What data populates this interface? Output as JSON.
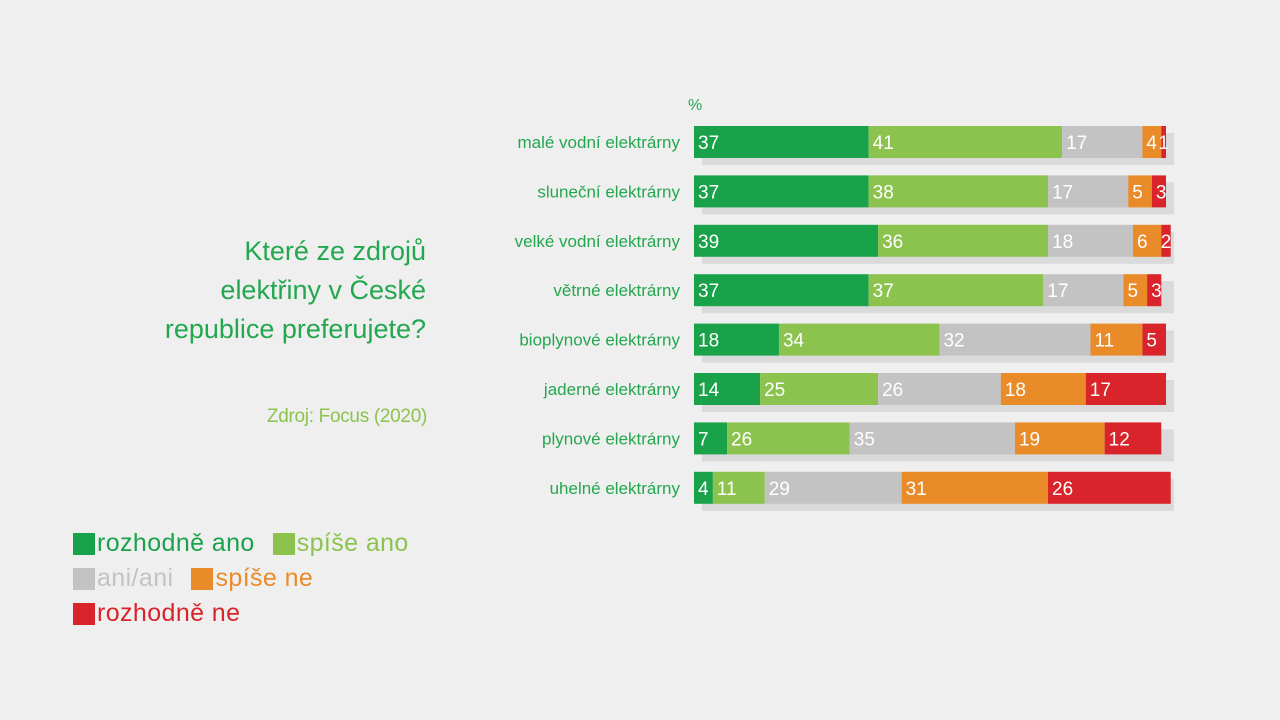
{
  "question": "Které ze zdrojů elektřiny v České republice preferujete?",
  "source": "Zdroj: Focus (2020)",
  "legend": [
    {
      "label": "rozhodně ano",
      "color": "#1aa24a"
    },
    {
      "label": "spíše ano",
      "color": "#8cc34e"
    },
    {
      "label": "ani/ani",
      "color": "#c3c3c3"
    },
    {
      "label": "spíše ne",
      "color": "#ea8b2a"
    },
    {
      "label": "rozhodně ne",
      "color": "#d8242a"
    }
  ],
  "colors": {
    "title": "#23a74f",
    "category_label": "#23a74f",
    "source": "#8cc34e",
    "unit": "#23a74f",
    "bar_text": "#ffffff"
  },
  "chart_data": {
    "type": "bar",
    "orientation": "horizontal",
    "stacked": true,
    "unit_label": "%",
    "xlim": [
      0,
      100
    ],
    "categories": [
      "malé vodní elektrárny",
      "sluneční elektrárny",
      "velké vodní elektrárny",
      "větrné elektrárny",
      "bioplynové elektrárny",
      "jaderné elektrárny",
      "plynové elektrárny",
      "uhelné elektrárny"
    ],
    "series": [
      {
        "name": "rozhodně ano",
        "color": "#1aa24a",
        "values": [
          37,
          37,
          39,
          37,
          18,
          14,
          7,
          4
        ]
      },
      {
        "name": "spíše ano",
        "color": "#8cc34e",
        "values": [
          41,
          38,
          36,
          37,
          34,
          25,
          26,
          11
        ]
      },
      {
        "name": "ani/ani",
        "color": "#c3c3c3",
        "values": [
          17,
          17,
          18,
          17,
          32,
          26,
          35,
          29
        ]
      },
      {
        "name": "spíše ne",
        "color": "#ea8b2a",
        "values": [
          4,
          5,
          6,
          5,
          11,
          18,
          19,
          31
        ]
      },
      {
        "name": "rozhodně ne",
        "color": "#d8242a",
        "values": [
          1,
          3,
          2,
          3,
          5,
          17,
          12,
          26
        ]
      }
    ]
  }
}
